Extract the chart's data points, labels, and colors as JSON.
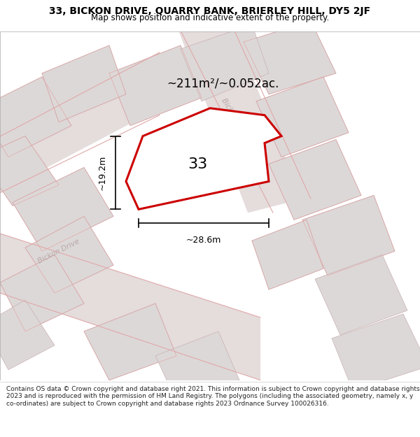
{
  "title_line1": "33, BICKON DRIVE, QUARRY BANK, BRIERLEY HILL, DY5 2JF",
  "title_line2": "Map shows position and indicative extent of the property.",
  "footer": "Contains OS data © Crown copyright and database right 2021. This information is subject to Crown copyright and database rights 2023 and is reproduced with the permission of HM Land Registry. The polygons (including the associated geometry, namely x, y co-ordinates) are subject to Crown copyright and database rights 2023 Ordnance Survey 100026316.",
  "area_label": "~211m²/~0.052ac.",
  "number_label": "33",
  "width_label": "~28.6m",
  "height_label": "~19.2m",
  "bg_color": "#f2eeee",
  "road_fill_color": "#e5dcdc",
  "road_color_light": "#e0a8a8",
  "building_color": "#ddd8d8",
  "building_edge_color": "#c8b0b0",
  "highlight_color": "#cc0000",
  "road_label_color": "#b8a8a8",
  "title_fontsize": 10,
  "footer_fontsize": 6.5,
  "area_fontsize": 12,
  "number_fontsize": 16,
  "dim_fontsize": 9
}
